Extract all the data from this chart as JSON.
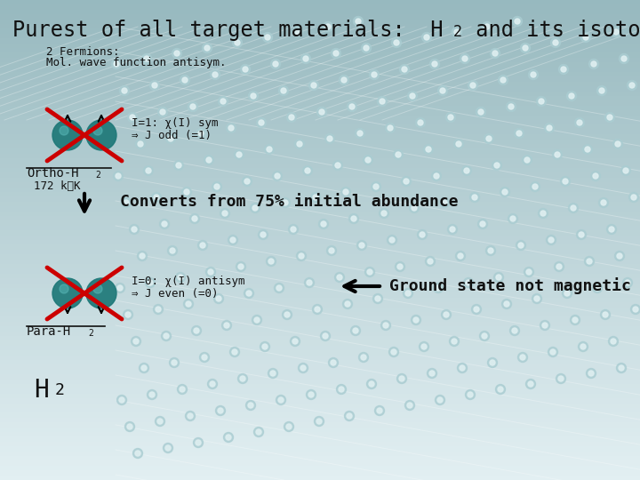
{
  "title_part1": "Purest of all target materials:  H",
  "title_h2_sub": "2",
  "title_part2": " and its isotope variations",
  "title_fontsize": 18,
  "bg_top": "#e2eff2",
  "bg_bottom": "#96b8be",
  "text_color": "#111111",
  "label_fermions": "2 Fermions:",
  "label_mol": "Mol. wave function antisym.",
  "ortho_label1": "I=1: χ(I) sym",
  "ortho_label2": "⇒ J odd (=1)",
  "ortho_name": "Ortho-H",
  "ortho_sub": "2",
  "ortho_energy": "172 kᴇK",
  "arrow_text": "Converts from 75% initial abundance",
  "para_label1": "I=0: χ(I) antisym",
  "para_label2": "⇒ J even (=0)",
  "para_name": "Para-H",
  "para_sub": "2",
  "ground_text": "Ground state not magnetic !",
  "h2_label": "H",
  "h2_sub": "2",
  "teal_color": "#1e7878",
  "red_color": "#cc0000",
  "small_fs": 9,
  "mid_fs": 11,
  "large_fs": 13,
  "title_fs": 17
}
